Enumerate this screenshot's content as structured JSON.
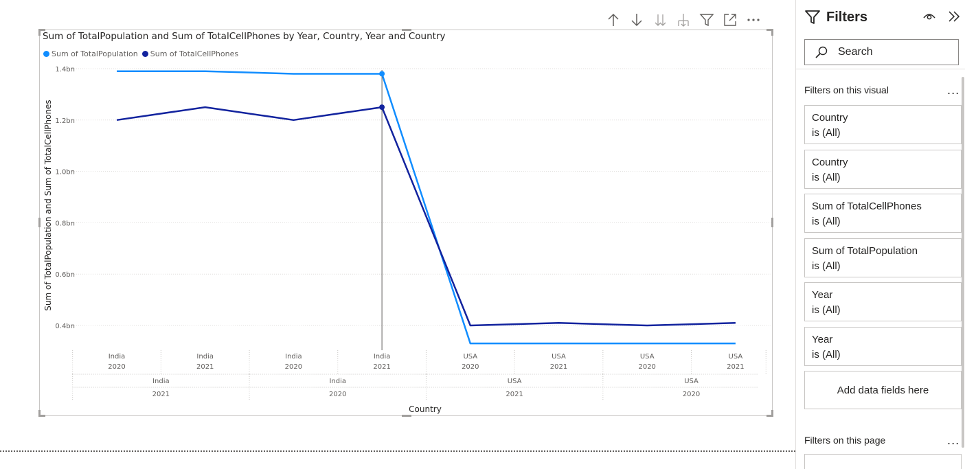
{
  "toolbar": {
    "icons": [
      "arrow-up-icon",
      "arrow-down-icon",
      "double-arrow-down-icon",
      "expand-hierarchy-icon",
      "filter-icon",
      "focus-mode-icon",
      "more-options-icon"
    ]
  },
  "visual": {
    "title": "Sum of TotalPopulation and Sum of TotalCellPhones by Year, Country, Year and Country",
    "legend": [
      {
        "label": "Sum of TotalPopulation",
        "color": "#118DFF"
      },
      {
        "label": "Sum of TotalCellPhones",
        "color": "#12239E"
      }
    ]
  },
  "chart_data": {
    "type": "line",
    "title": "Sum of TotalPopulation and Sum of TotalCellPhones by Year, Country, Year and Country",
    "xlabel": "Country",
    "ylabel": "Sum of TotalPopulation and Sum of TotalCellPhones",
    "y_ticks": [
      "0.4bn",
      "0.6bn",
      "0.8bn",
      "1.0bn",
      "1.2bn",
      "1.4bn"
    ],
    "y_tick_values": [
      0.4,
      0.6,
      0.8,
      1.0,
      1.2,
      1.4
    ],
    "ylim": [
      0.3,
      1.4
    ],
    "unit": "bn",
    "grid": true,
    "legend_position": "top-left",
    "x_level1": [
      {
        "country": "India",
        "year": "2020"
      },
      {
        "country": "India",
        "year": "2021"
      },
      {
        "country": "India",
        "year": "2020"
      },
      {
        "country": "India",
        "year": "2021"
      },
      {
        "country": "USA",
        "year": "2020"
      },
      {
        "country": "USA",
        "year": "2021"
      },
      {
        "country": "USA",
        "year": "2020"
      },
      {
        "country": "USA",
        "year": "2021"
      }
    ],
    "x_level2": [
      {
        "country": "India",
        "year": "2021"
      },
      {
        "country": "India",
        "year": "2020"
      },
      {
        "country": "USA",
        "year": "2021"
      },
      {
        "country": "USA",
        "year": "2020"
      }
    ],
    "series": [
      {
        "name": "Sum of TotalPopulation",
        "color": "#118DFF",
        "values": [
          1.39,
          1.39,
          1.38,
          1.38,
          0.33,
          0.33,
          0.33,
          0.33
        ]
      },
      {
        "name": "Sum of TotalCellPhones",
        "color": "#12239E",
        "values": [
          1.2,
          1.25,
          1.2,
          1.25,
          0.4,
          0.41,
          0.4,
          0.41
        ]
      }
    ],
    "highlight_index": 3
  },
  "filters": {
    "title": "Filters",
    "search_placeholder": "Search",
    "visual_section": "Filters on this visual",
    "more": "...",
    "cards": [
      {
        "name": "Country",
        "state": "is (All)"
      },
      {
        "name": "Country",
        "state": "is (All)"
      },
      {
        "name": "Sum of TotalCellPhones",
        "state": "is (All)"
      },
      {
        "name": "Sum of TotalPopulation",
        "state": "is (All)"
      },
      {
        "name": "Year",
        "state": "is (All)"
      },
      {
        "name": "Year",
        "state": "is (All)"
      }
    ],
    "add_fields": "Add data fields here",
    "page_section": "Filters on this page"
  }
}
